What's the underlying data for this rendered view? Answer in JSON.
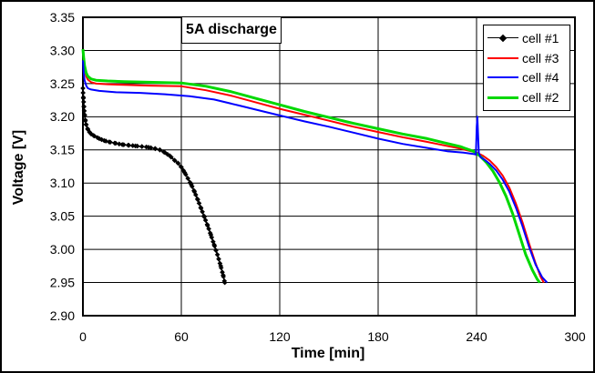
{
  "window": {
    "background": "#ffffff",
    "frame_color": "#000000"
  },
  "chart_data": {
    "type": "line",
    "title": "5A discharge",
    "xlabel": "Time [min]",
    "ylabel": "Voltage [V]",
    "xlim": [
      0,
      300
    ],
    "ylim": [
      2.9,
      3.35
    ],
    "grid": true,
    "grid_color": "#000000",
    "legend_position": "top-right",
    "xticks": [
      {
        "v": 0,
        "label": "0"
      },
      {
        "v": 60,
        "label": "60"
      },
      {
        "v": 120,
        "label": "120"
      },
      {
        "v": 180,
        "label": "180"
      },
      {
        "v": 240,
        "label": "240"
      },
      {
        "v": 300,
        "label": "300"
      }
    ],
    "yticks": [
      {
        "v": 3.35,
        "label": "3.35"
      },
      {
        "v": 3.3,
        "label": "3.30"
      },
      {
        "v": 3.25,
        "label": "3.25"
      },
      {
        "v": 3.2,
        "label": "3.20"
      },
      {
        "v": 3.15,
        "label": "3.15"
      },
      {
        "v": 3.1,
        "label": "3.10"
      },
      {
        "v": 3.05,
        "label": "3.05"
      },
      {
        "v": 3.0,
        "label": "3.00"
      },
      {
        "v": 2.95,
        "label": "2.95"
      },
      {
        "v": 2.9,
        "label": "2.90"
      }
    ],
    "series": [
      {
        "name": "cell #1",
        "color": "#000000",
        "width": 1.6,
        "marker": "diamond",
        "points": [
          [
            0,
            3.243
          ],
          [
            0.3,
            3.228
          ],
          [
            0.6,
            3.215
          ],
          [
            1,
            3.203
          ],
          [
            1.5,
            3.194
          ],
          [
            2,
            3.188
          ],
          [
            3,
            3.181
          ],
          [
            4,
            3.177
          ],
          [
            5,
            3.174
          ],
          [
            7,
            3.171
          ],
          [
            10,
            3.167
          ],
          [
            13,
            3.164
          ],
          [
            16,
            3.162
          ],
          [
            20,
            3.16
          ],
          [
            24,
            3.158
          ],
          [
            28,
            3.157
          ],
          [
            32,
            3.156
          ],
          [
            36,
            3.155
          ],
          [
            40,
            3.154
          ],
          [
            44,
            3.152
          ],
          [
            47,
            3.15
          ],
          [
            50,
            3.146
          ],
          [
            53,
            3.141
          ],
          [
            56,
            3.134
          ],
          [
            58,
            3.13
          ],
          [
            60,
            3.124
          ],
          [
            62,
            3.116
          ],
          [
            64,
            3.107
          ],
          [
            66,
            3.098
          ],
          [
            68,
            3.087
          ],
          [
            70,
            3.075
          ],
          [
            72,
            3.062
          ],
          [
            74,
            3.049
          ],
          [
            76,
            3.036
          ],
          [
            78,
            3.022
          ],
          [
            80,
            3.007
          ],
          [
            82,
            2.992
          ],
          [
            84,
            2.975
          ],
          [
            85.5,
            2.961
          ],
          [
            86.5,
            2.95
          ]
        ]
      },
      {
        "name": "cell #3",
        "color": "#ff0000",
        "width": 2,
        "marker": null,
        "points": [
          [
            0,
            3.3
          ],
          [
            0.5,
            3.284
          ],
          [
            1,
            3.272
          ],
          [
            2,
            3.261
          ],
          [
            3,
            3.256
          ],
          [
            5,
            3.252
          ],
          [
            8,
            3.25
          ],
          [
            15,
            3.249
          ],
          [
            25,
            3.248
          ],
          [
            40,
            3.247
          ],
          [
            60,
            3.246
          ],
          [
            75,
            3.24
          ],
          [
            90,
            3.232
          ],
          [
            105,
            3.222
          ],
          [
            120,
            3.212
          ],
          [
            135,
            3.203
          ],
          [
            150,
            3.194
          ],
          [
            165,
            3.185
          ],
          [
            180,
            3.177
          ],
          [
            195,
            3.169
          ],
          [
            210,
            3.162
          ],
          [
            220,
            3.157
          ],
          [
            230,
            3.152
          ],
          [
            240,
            3.146
          ],
          [
            244,
            3.141
          ],
          [
            248,
            3.134
          ],
          [
            252,
            3.124
          ],
          [
            256,
            3.111
          ],
          [
            260,
            3.093
          ],
          [
            264,
            3.069
          ],
          [
            268,
            3.041
          ],
          [
            272,
            3.009
          ],
          [
            276,
            2.979
          ],
          [
            279,
            2.959
          ],
          [
            281,
            2.95
          ]
        ]
      },
      {
        "name": "cell #4",
        "color": "#0000ff",
        "width": 2,
        "marker": null,
        "points": [
          [
            0,
            3.285
          ],
          [
            0.5,
            3.266
          ],
          [
            1,
            3.255
          ],
          [
            2,
            3.247
          ],
          [
            3,
            3.243
          ],
          [
            5,
            3.241
          ],
          [
            10,
            3.239
          ],
          [
            20,
            3.237
          ],
          [
            35,
            3.236
          ],
          [
            50,
            3.234
          ],
          [
            65,
            3.231
          ],
          [
            80,
            3.226
          ],
          [
            95,
            3.217
          ],
          [
            110,
            3.208
          ],
          [
            120,
            3.202
          ],
          [
            135,
            3.193
          ],
          [
            150,
            3.185
          ],
          [
            165,
            3.176
          ],
          [
            180,
            3.167
          ],
          [
            195,
            3.159
          ],
          [
            210,
            3.153
          ],
          [
            222,
            3.148
          ],
          [
            232,
            3.146
          ],
          [
            238,
            3.144
          ],
          [
            239.6,
            3.143
          ],
          [
            240.1,
            3.185
          ],
          [
            240.5,
            3.2
          ],
          [
            240.9,
            3.175
          ],
          [
            241.4,
            3.145
          ],
          [
            242.5,
            3.139
          ],
          [
            245,
            3.135
          ],
          [
            248,
            3.129
          ],
          [
            252,
            3.119
          ],
          [
            256,
            3.105
          ],
          [
            260,
            3.087
          ],
          [
            264,
            3.063
          ],
          [
            268,
            3.035
          ],
          [
            272,
            3.004
          ],
          [
            276,
            2.977
          ],
          [
            280,
            2.958
          ],
          [
            283,
            2.95
          ]
        ]
      },
      {
        "name": "cell #2",
        "color": "#00d800",
        "width": 3,
        "marker": null,
        "points": [
          [
            0,
            3.302
          ],
          [
            0.5,
            3.288
          ],
          [
            1,
            3.277
          ],
          [
            2,
            3.266
          ],
          [
            3,
            3.261
          ],
          [
            5,
            3.257
          ],
          [
            8,
            3.255
          ],
          [
            15,
            3.254
          ],
          [
            25,
            3.253
          ],
          [
            40,
            3.252
          ],
          [
            60,
            3.251
          ],
          [
            75,
            3.246
          ],
          [
            90,
            3.238
          ],
          [
            105,
            3.228
          ],
          [
            120,
            3.218
          ],
          [
            135,
            3.208
          ],
          [
            150,
            3.199
          ],
          [
            165,
            3.19
          ],
          [
            180,
            3.182
          ],
          [
            195,
            3.174
          ],
          [
            210,
            3.167
          ],
          [
            220,
            3.161
          ],
          [
            230,
            3.155
          ],
          [
            238,
            3.148
          ],
          [
            242,
            3.141
          ],
          [
            246,
            3.131
          ],
          [
            250,
            3.118
          ],
          [
            254,
            3.101
          ],
          [
            258,
            3.08
          ],
          [
            262,
            3.054
          ],
          [
            266,
            3.023
          ],
          [
            270,
            2.992
          ],
          [
            274,
            2.969
          ],
          [
            277,
            2.955
          ],
          [
            278.5,
            2.95
          ]
        ]
      }
    ],
    "legend_order": [
      "cell #1",
      "cell #3",
      "cell #4",
      "cell #2"
    ]
  }
}
